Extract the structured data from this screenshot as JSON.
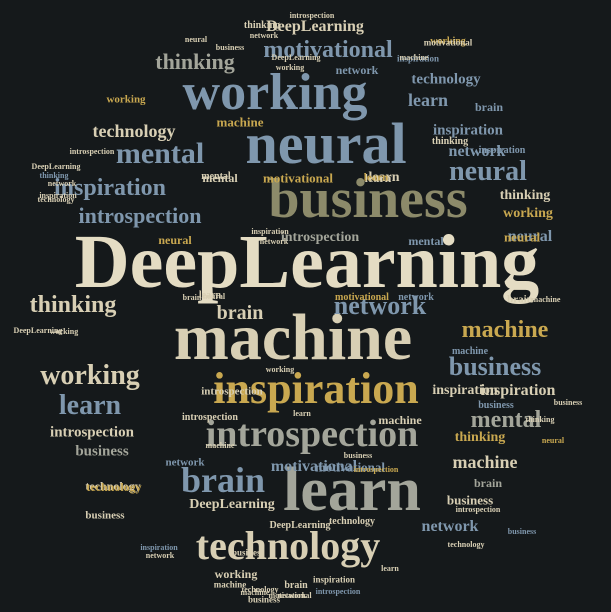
{
  "cloud": {
    "words": [
      {
        "text": "DeepLearning",
        "color": "#e4dcc3"
      },
      {
        "text": "machine",
        "color": "#d8cfb4"
      },
      {
        "text": "learn",
        "color": "#a3a59a"
      },
      {
        "text": "business",
        "color": "#8c8a6a"
      },
      {
        "text": "neural",
        "color": "#7f97ad"
      },
      {
        "text": "working",
        "color": "#7f97ad"
      },
      {
        "text": "inspiration",
        "color": "#c9a850"
      },
      {
        "text": "introspection",
        "color": "#a3a59a"
      },
      {
        "text": "technology",
        "color": "#d8cfb4"
      },
      {
        "text": "brain",
        "color": "#7f97ad"
      },
      {
        "text": "mental",
        "color": "#7f97ad"
      },
      {
        "text": "network",
        "color": "#7f97ad"
      },
      {
        "text": "motivational",
        "color": "#7f97ad"
      },
      {
        "text": "thinking",
        "color": "#d8cfb4"
      },
      {
        "text": "inspiration",
        "color": "#7f97ad"
      },
      {
        "text": "introspection",
        "color": "#7f97ad"
      },
      {
        "text": "neural",
        "color": "#7f97ad"
      },
      {
        "text": "machine",
        "color": "#c9a850"
      },
      {
        "text": "business",
        "color": "#7f97ad"
      },
      {
        "text": "working",
        "color": "#d8cfb4"
      },
      {
        "text": "learn",
        "color": "#7f97ad"
      },
      {
        "text": "thinking",
        "color": "#a3a59a"
      },
      {
        "text": "mental",
        "color": "#a3a59a"
      },
      {
        "text": "network",
        "color": "#7f97ad"
      },
      {
        "text": "motivational",
        "color": "#7f97ad"
      },
      {
        "text": "technology",
        "color": "#d8cfb4"
      },
      {
        "text": "machine",
        "color": "#d8cfb4"
      },
      {
        "text": "inspiration",
        "color": "#d8cfb4"
      },
      {
        "text": "introspection",
        "color": "#d8cfb4"
      },
      {
        "text": "learn",
        "color": "#7f97ad"
      },
      {
        "text": "business",
        "color": "#a3a59a"
      },
      {
        "text": "DeepLearning",
        "color": "#d8cfb4"
      },
      {
        "text": "thinking",
        "color": "#d8cfb4"
      },
      {
        "text": "technology",
        "color": "#7f97ad"
      },
      {
        "text": "brain",
        "color": "#d8cfb4"
      },
      {
        "text": "neural",
        "color": "#7f97ad"
      },
      {
        "text": "learn",
        "color": "#d8cfb4"
      },
      {
        "text": "inspiration",
        "color": "#7f97ad"
      },
      {
        "text": "introspection",
        "color": "#a3a59a"
      },
      {
        "text": "network",
        "color": "#7f97ad"
      },
      {
        "text": "technology",
        "color": "#d8cfb4"
      },
      {
        "text": "mental",
        "color": "#d8cfb4"
      },
      {
        "text": "working",
        "color": "#c9a850"
      },
      {
        "text": "motivational",
        "color": "#c9a850"
      },
      {
        "text": "machine",
        "color": "#c9a850"
      },
      {
        "text": "thinking",
        "color": "#c9a850"
      },
      {
        "text": "DeepLearning",
        "color": "#d8cfb4"
      },
      {
        "text": "business",
        "color": "#d8cfb4"
      },
      {
        "text": "machine",
        "color": "#d8cfb4"
      },
      {
        "text": "brain",
        "color": "#7f97ad"
      },
      {
        "text": "business",
        "color": "#d8cfb4"
      },
      {
        "text": "motivational",
        "color": "#7f97ad"
      },
      {
        "text": "network",
        "color": "#7f97ad"
      },
      {
        "text": "learn",
        "color": "#d8cfb4"
      },
      {
        "text": "inspiration",
        "color": "#d8cfb4"
      },
      {
        "text": "technology",
        "color": "#c9a850"
      },
      {
        "text": "neural",
        "color": "#c9a850"
      },
      {
        "text": "brain",
        "color": "#a3a59a"
      },
      {
        "text": "mental",
        "color": "#7f97ad"
      },
      {
        "text": "neural",
        "color": "#c9a850"
      },
      {
        "text": "introspection",
        "color": "#d8cfb4"
      },
      {
        "text": "working",
        "color": "#c9a850"
      },
      {
        "text": "learn",
        "color": "#c9a850"
      },
      {
        "text": "network",
        "color": "#7f97ad"
      },
      {
        "text": "machine",
        "color": "#7f97ad"
      },
      {
        "text": "learn",
        "color": "#d8cfb4"
      },
      {
        "text": "mental",
        "color": "#d8cfb4"
      },
      {
        "text": "introspection",
        "color": "#d8cfb4"
      },
      {
        "text": "motivational",
        "color": "#c9a850"
      },
      {
        "text": "network",
        "color": "#7f97ad"
      },
      {
        "text": "brain",
        "color": "#d8cfb4"
      },
      {
        "text": "business",
        "color": "#7f97ad"
      },
      {
        "text": "inspiration",
        "color": "#7f97ad"
      },
      {
        "text": "thinking",
        "color": "#d8cfb4"
      },
      {
        "text": "working",
        "color": "#c9a850"
      },
      {
        "text": "motivational",
        "color": "#d8cfb4"
      },
      {
        "text": "inspiration",
        "color": "#7f97ad"
      },
      {
        "text": "machine",
        "color": "#d8cfb4"
      },
      {
        "text": "DeepLearning",
        "color": "#d8cfb4"
      },
      {
        "text": "technology",
        "color": "#d8cfb4"
      },
      {
        "text": "brain",
        "color": "#d8cfb4"
      },
      {
        "text": "inspiration",
        "color": "#d8cfb4"
      },
      {
        "text": "introspection",
        "color": "#7f97ad"
      },
      {
        "text": "motivational",
        "color": "#d8cfb4"
      },
      {
        "text": "machine",
        "color": "#d8cfb4"
      },
      {
        "text": "network",
        "color": "#d8cfb4"
      },
      {
        "text": "business",
        "color": "#d8cfb4"
      },
      {
        "text": "neural",
        "color": "#c9a850"
      },
      {
        "text": "business",
        "color": "#7f97ad"
      },
      {
        "text": "introspection",
        "color": "#d8cfb4"
      },
      {
        "text": "technology",
        "color": "#d8cfb4"
      },
      {
        "text": "learn",
        "color": "#d8cfb4"
      },
      {
        "text": "inspiration",
        "color": "#7f97ad"
      },
      {
        "text": "network",
        "color": "#d8cfb4"
      },
      {
        "text": "working",
        "color": "#d8cfb4"
      },
      {
        "text": "thinking",
        "color": "#7f97ad"
      },
      {
        "text": "inspiration",
        "color": "#d8cfb4"
      },
      {
        "text": "network",
        "color": "#d8cfb4"
      },
      {
        "text": "technology",
        "color": "#d8cfb4"
      },
      {
        "text": "machine",
        "color": "#d8cfb4"
      },
      {
        "text": "DeepLearning",
        "color": "#d8cfb4"
      },
      {
        "text": "introspection",
        "color": "#d8cfb4"
      },
      {
        "text": "business",
        "color": "#d8cfb4"
      },
      {
        "text": "thinking",
        "color": "#d8cfb4"
      },
      {
        "text": "machine",
        "color": "#d8cfb4"
      },
      {
        "text": "network",
        "color": "#d8cfb4"
      },
      {
        "text": "neural",
        "color": "#d8cfb4"
      },
      {
        "text": "brain",
        "color": "#d8cfb4"
      },
      {
        "text": "learn",
        "color": "#d8cfb4"
      },
      {
        "text": "working",
        "color": "#d8cfb4"
      },
      {
        "text": "introspection",
        "color": "#c9a850"
      },
      {
        "text": "business",
        "color": "#d8cfb4"
      },
      {
        "text": "inspiration",
        "color": "#d8cfb4"
      },
      {
        "text": "working",
        "color": "#d8cfb4"
      },
      {
        "text": "DeepLearning",
        "color": "#d8cfb4"
      },
      {
        "text": "neural",
        "color": "#d8cfb4"
      },
      {
        "text": "network",
        "color": "#d8cfb4"
      },
      {
        "text": "business",
        "color": "#d8cfb4"
      },
      {
        "text": "introspection",
        "color": "#d8cfb4"
      },
      {
        "text": "thinking",
        "color": "#d8cfb4"
      },
      {
        "text": "technology",
        "color": "#d8cfb4"
      },
      {
        "text": "working",
        "color": "#d8cfb4"
      },
      {
        "text": "machine",
        "color": "#d8cfb4"
      },
      {
        "text": "business",
        "color": "#d8cfb4"
      },
      {
        "text": "DeepLearning",
        "color": "#d8cfb4"
      }
    ]
  }
}
